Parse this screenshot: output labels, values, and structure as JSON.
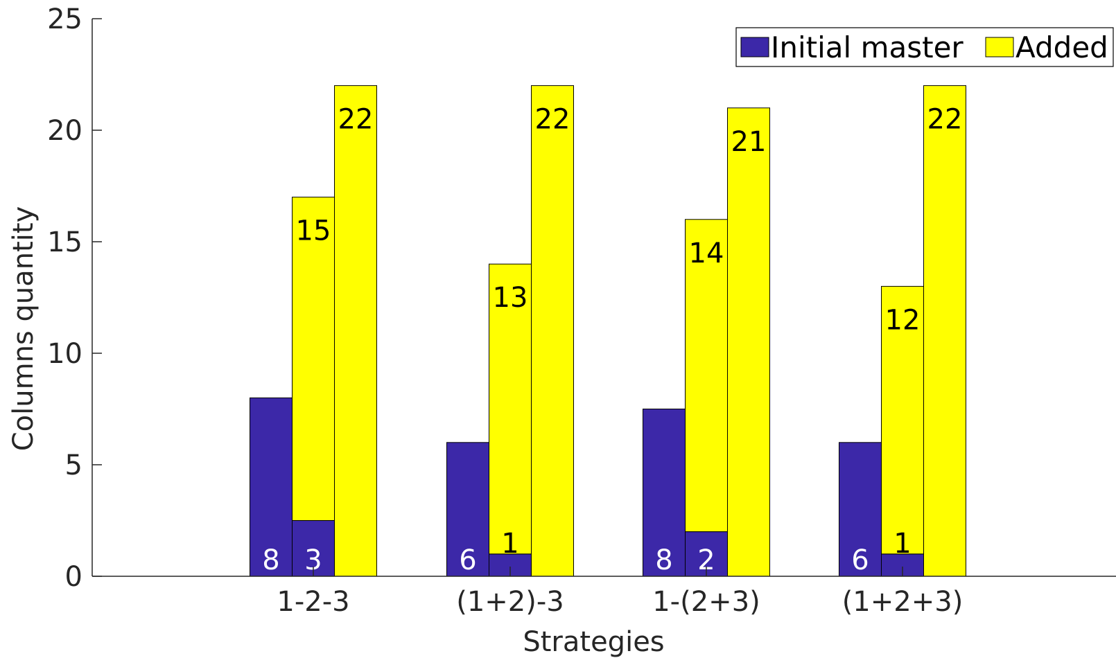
{
  "chart_data": {
    "type": "bar",
    "title": "",
    "xlabel": "Strategies",
    "ylabel": "Columns quantity",
    "ylim": [
      0,
      25
    ],
    "yticks": [
      "0",
      "5",
      "10",
      "15",
      "20",
      "25"
    ],
    "categories": [
      "1-2-3",
      "(1+2)-3",
      "1-(2+3)",
      "(1+2+3)"
    ],
    "bar_groups": [
      {
        "category": "1-2-3",
        "bars": [
          {
            "initial": 8,
            "added": 0,
            "labels": [
              "8"
            ]
          },
          {
            "initial": 2.5,
            "added": 14.5,
            "labels": [
              "3",
              "15"
            ]
          },
          {
            "initial": 0,
            "added": 22,
            "labels": [
              "22"
            ]
          }
        ]
      },
      {
        "category": "(1+2)-3",
        "bars": [
          {
            "initial": 6,
            "added": 0,
            "labels": [
              "6"
            ]
          },
          {
            "initial": 1,
            "added": 13,
            "labels": [
              "1",
              "13"
            ]
          },
          {
            "initial": 0,
            "added": 22,
            "labels": [
              "22"
            ]
          }
        ]
      },
      {
        "category": "1-(2+3)",
        "bars": [
          {
            "initial": 7.5,
            "added": 0,
            "labels": [
              "8"
            ]
          },
          {
            "initial": 2,
            "added": 14,
            "labels": [
              "2",
              "14"
            ]
          },
          {
            "initial": 0,
            "added": 21,
            "labels": [
              "21"
            ]
          }
        ]
      },
      {
        "category": "(1+2+3)",
        "bars": [
          {
            "initial": 6,
            "added": 0,
            "labels": [
              "6"
            ]
          },
          {
            "initial": 1,
            "added": 12,
            "labels": [
              "1",
              "12"
            ]
          },
          {
            "initial": 0,
            "added": 22,
            "labels": [
              "22"
            ]
          }
        ]
      }
    ],
    "series": [
      {
        "name": "Initial master",
        "color": "#3c28a8"
      },
      {
        "name": "Added",
        "color": "#ffff00"
      }
    ],
    "legend": {
      "placement": "top-right",
      "orientation": "horizontal"
    },
    "grid": false
  }
}
